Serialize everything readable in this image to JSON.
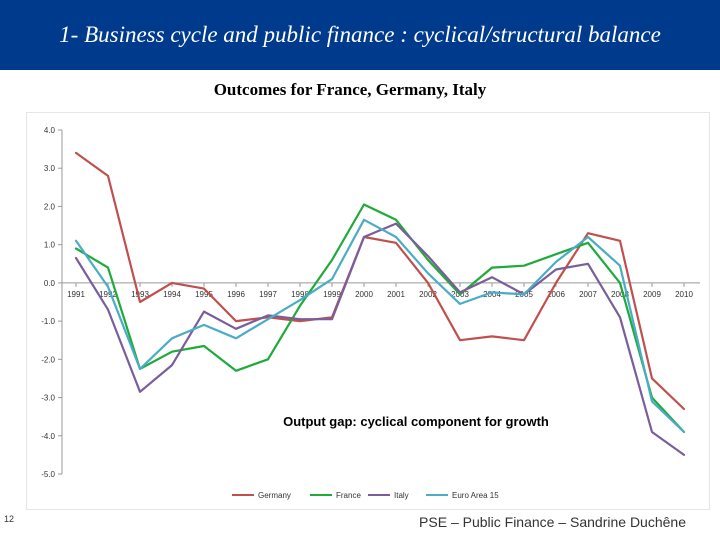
{
  "slide": {
    "header_title": "1- Business cycle and public finance : cyclical/structural balance",
    "subtitle": "Outcomes for France, Germany, Italy",
    "page_number": "12",
    "footer": "PSE – Public Finance – Sandrine Duchêne",
    "header_color": "#003a8c"
  },
  "chart_data": {
    "type": "line",
    "title": "Output gap: cyclical component for growth",
    "xlabel": "",
    "ylabel": "",
    "ylim": [
      -5,
      4
    ],
    "y_ticks": [
      "4.0",
      "3.0",
      "2.0",
      "1.0",
      "0.0",
      "-1.0",
      "-2.0",
      "-3.0",
      "-4.0",
      "-5.0"
    ],
    "y_tick_values": [
      4,
      3,
      2,
      1,
      0,
      -1,
      -2,
      -3,
      -4,
      -5
    ],
    "categories": [
      "1991",
      "1992",
      "1993",
      "1994",
      "1995",
      "1996",
      "1997",
      "1998",
      "1999",
      "2000",
      "2001",
      "2002",
      "2003",
      "2004",
      "2005",
      "2006",
      "2007",
      "2008",
      "2009",
      "2010"
    ],
    "grid": false,
    "legend_position": "bottom",
    "series": [
      {
        "name": "Germany",
        "color": "#c0504d",
        "values": [
          3.4,
          2.8,
          -0.5,
          0.0,
          -0.15,
          -1.0,
          -0.9,
          -1.0,
          -0.9,
          1.2,
          1.05,
          0.0,
          -1.5,
          -1.4,
          -1.5,
          0.0,
          1.3,
          1.1,
          -2.5,
          -3.3
        ]
      },
      {
        "name": "France",
        "color": "#1faa3a",
        "values": [
          0.9,
          0.4,
          -2.25,
          -1.8,
          -1.65,
          -2.3,
          -2.0,
          -0.6,
          0.6,
          2.05,
          1.65,
          0.6,
          -0.3,
          0.4,
          0.45,
          0.75,
          1.05,
          0.0,
          -3.0,
          -3.9
        ]
      },
      {
        "name": "Italy",
        "color": "#7a5e9b",
        "values": [
          0.65,
          -0.7,
          -2.85,
          -2.15,
          -0.75,
          -1.2,
          -0.85,
          -0.95,
          -0.95,
          1.2,
          1.55,
          0.7,
          -0.25,
          0.15,
          -0.3,
          0.35,
          0.5,
          -0.9,
          -3.9,
          -4.5
        ]
      },
      {
        "name": "Euro Area 15",
        "color": "#4bacc6",
        "values": [
          1.1,
          -0.1,
          -2.25,
          -1.45,
          -1.1,
          -1.45,
          -0.95,
          -0.45,
          0.1,
          1.65,
          1.2,
          0.25,
          -0.55,
          -0.25,
          -0.3,
          0.55,
          1.2,
          0.45,
          -3.1,
          -3.9
        ]
      }
    ]
  }
}
